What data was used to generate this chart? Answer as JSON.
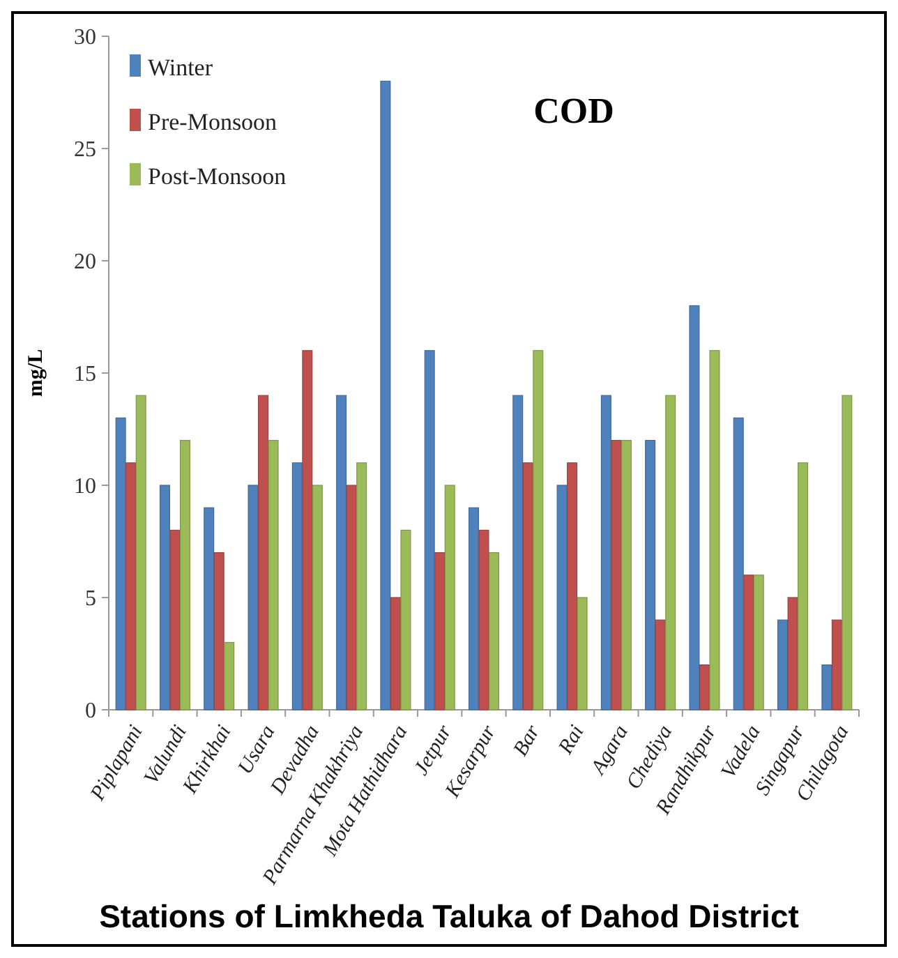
{
  "chart_data": {
    "type": "bar",
    "title": "COD",
    "xlabel": "Stations of Limkheda Taluka of Dahod District",
    "ylabel": "mg/L",
    "categories": [
      "Piplapani",
      "Valundi",
      "Khirkhai",
      "Usara",
      "Devadha",
      "Parmarna Khakhriya",
      "Mota Hathidhara",
      "Jetpur",
      "Kesarpur",
      "Bar",
      "Rai",
      "Agara",
      "Chediya",
      "Randhikpur",
      "Vadela",
      "Singapur",
      "Chilagota"
    ],
    "series": [
      {
        "name": "Winter",
        "color": "#4f81bd",
        "values": [
          13,
          10,
          9,
          10,
          11,
          14,
          28,
          16,
          9,
          14,
          10,
          14,
          12,
          18,
          13,
          4,
          2
        ]
      },
      {
        "name": "Pre-Monsoon",
        "color": "#c0504d",
        "values": [
          11,
          8,
          7,
          14,
          16,
          10,
          5,
          7,
          8,
          11,
          11,
          12,
          4,
          2,
          6,
          5,
          4
        ]
      },
      {
        "name": "Post-Monsoon",
        "color": "#9bbb59",
        "values": [
          14,
          12,
          3,
          12,
          10,
          11,
          8,
          10,
          7,
          16,
          5,
          12,
          14,
          16,
          6,
          11,
          14
        ]
      }
    ],
    "ylim": [
      0,
      30
    ],
    "yticks": [
      0,
      5,
      10,
      15,
      20,
      25,
      30
    ],
    "grid": false,
    "legend": "top left"
  }
}
